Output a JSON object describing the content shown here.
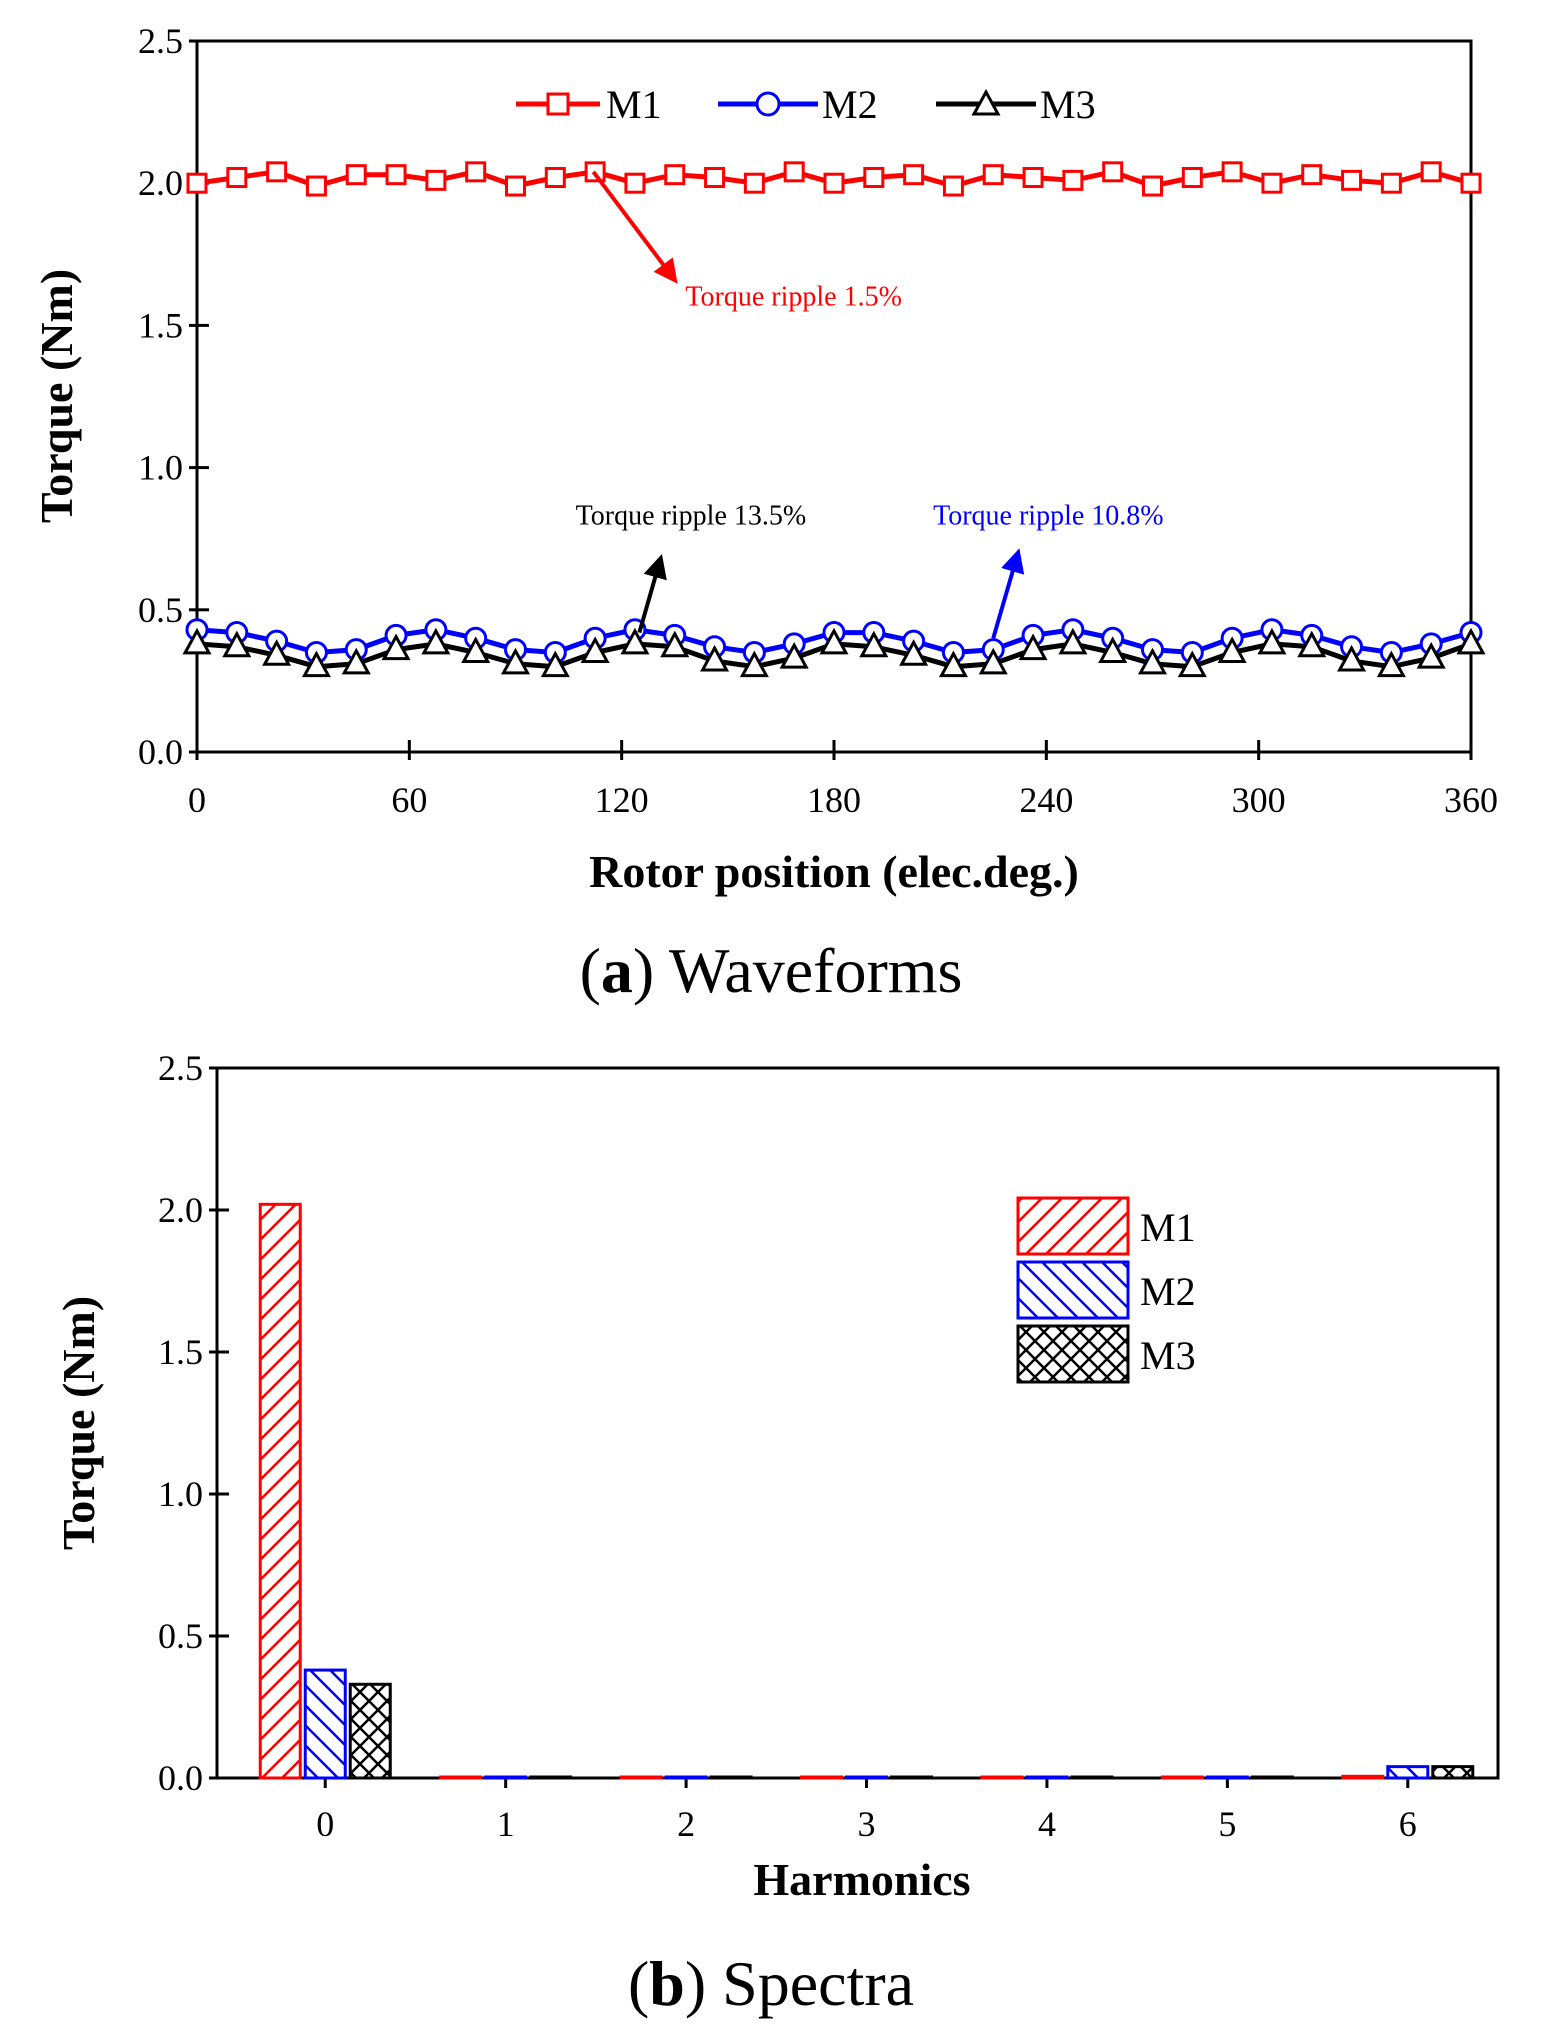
{
  "colors": {
    "M1": "#ff0000",
    "M2": "#0000ff",
    "M3": "#000000"
  },
  "chart_data": [
    {
      "type": "line",
      "caption_letter": "a",
      "caption_text": "Waveforms",
      "xlabel": "Rotor position (elec.deg.)",
      "ylabel": "Torque (Nm)",
      "xlim": [
        0,
        360
      ],
      "ylim": [
        0,
        2.5
      ],
      "xticks": [
        "0",
        "60",
        "120",
        "180",
        "240",
        "300",
        "360"
      ],
      "yticks": [
        "0.0",
        "0.5",
        "1.0",
        "1.5",
        "2.0",
        "2.5"
      ],
      "legend_position": "top",
      "x": [
        0,
        11.25,
        22.5,
        33.75,
        45,
        56.25,
        67.5,
        78.75,
        90,
        101.25,
        112.5,
        123.75,
        135,
        146.25,
        157.5,
        168.75,
        180,
        191.25,
        202.5,
        213.75,
        225,
        236.25,
        247.5,
        258.75,
        270,
        281.25,
        292.5,
        303.75,
        315,
        326.25,
        337.5,
        348.75,
        360
      ],
      "series": [
        {
          "name": "M1",
          "marker": "square",
          "values": [
            2.0,
            2.02,
            2.04,
            1.99,
            2.03,
            2.03,
            2.01,
            2.04,
            1.99,
            2.02,
            2.04,
            2.0,
            2.03,
            2.02,
            2.0,
            2.04,
            2.0,
            2.02,
            2.03,
            1.99,
            2.03,
            2.02,
            2.01,
            2.04,
            1.99,
            2.02,
            2.04,
            2.0,
            2.03,
            2.01,
            2.0,
            2.04,
            2.0
          ]
        },
        {
          "name": "M2",
          "marker": "circle",
          "values": [
            0.43,
            0.42,
            0.39,
            0.35,
            0.36,
            0.41,
            0.43,
            0.4,
            0.36,
            0.35,
            0.4,
            0.43,
            0.41,
            0.37,
            0.35,
            0.38,
            0.42,
            0.42,
            0.39,
            0.35,
            0.36,
            0.41,
            0.43,
            0.4,
            0.36,
            0.35,
            0.4,
            0.43,
            0.41,
            0.37,
            0.35,
            0.38,
            0.42
          ]
        },
        {
          "name": "M3",
          "marker": "triangle",
          "values": [
            0.38,
            0.37,
            0.34,
            0.3,
            0.31,
            0.36,
            0.38,
            0.35,
            0.31,
            0.3,
            0.35,
            0.38,
            0.37,
            0.32,
            0.3,
            0.33,
            0.38,
            0.37,
            0.34,
            0.3,
            0.31,
            0.36,
            0.38,
            0.35,
            0.31,
            0.3,
            0.35,
            0.38,
            0.37,
            0.32,
            0.3,
            0.33,
            0.38
          ]
        }
      ],
      "annotations": [
        {
          "text": "Torque ripple 1.5%",
          "series": "M1",
          "arrow_from": [
            112,
            2.04
          ],
          "arrow_to": [
            135,
            1.66
          ],
          "text_at": [
            138,
            1.57
          ]
        },
        {
          "text": "Torque ripple 13.5%",
          "series": "M3",
          "arrow_from": [
            125,
            0.42
          ],
          "arrow_to": [
            131,
            0.68
          ],
          "text_at": [
            107,
            0.8
          ]
        },
        {
          "text": "Torque ripple 10.8%",
          "series": "M2",
          "arrow_from": [
            225,
            0.4
          ],
          "arrow_to": [
            232,
            0.7
          ],
          "text_at": [
            208,
            0.8
          ]
        }
      ]
    },
    {
      "type": "bar",
      "caption_letter": "b",
      "caption_text": "Spectra",
      "xlabel": "Harmonics",
      "ylabel": "Torque (Nm)",
      "ylim": [
        0,
        2.5
      ],
      "yticks": [
        "0.0",
        "0.5",
        "1.0",
        "1.5",
        "2.0",
        "2.5"
      ],
      "categories": [
        "0",
        "1",
        "2",
        "3",
        "4",
        "5",
        "6"
      ],
      "legend_position": "top-right",
      "series": [
        {
          "name": "M1",
          "pattern": "diagonal-forward",
          "values": [
            2.02,
            0.003,
            0.003,
            0.003,
            0.003,
            0.003,
            0.006
          ]
        },
        {
          "name": "M2",
          "pattern": "diagonal-back",
          "values": [
            0.38,
            0.002,
            0.002,
            0.002,
            0.002,
            0.002,
            0.04
          ]
        },
        {
          "name": "M3",
          "pattern": "crosshatch",
          "values": [
            0.33,
            0.002,
            0.002,
            0.002,
            0.002,
            0.002,
            0.04
          ]
        }
      ]
    }
  ]
}
